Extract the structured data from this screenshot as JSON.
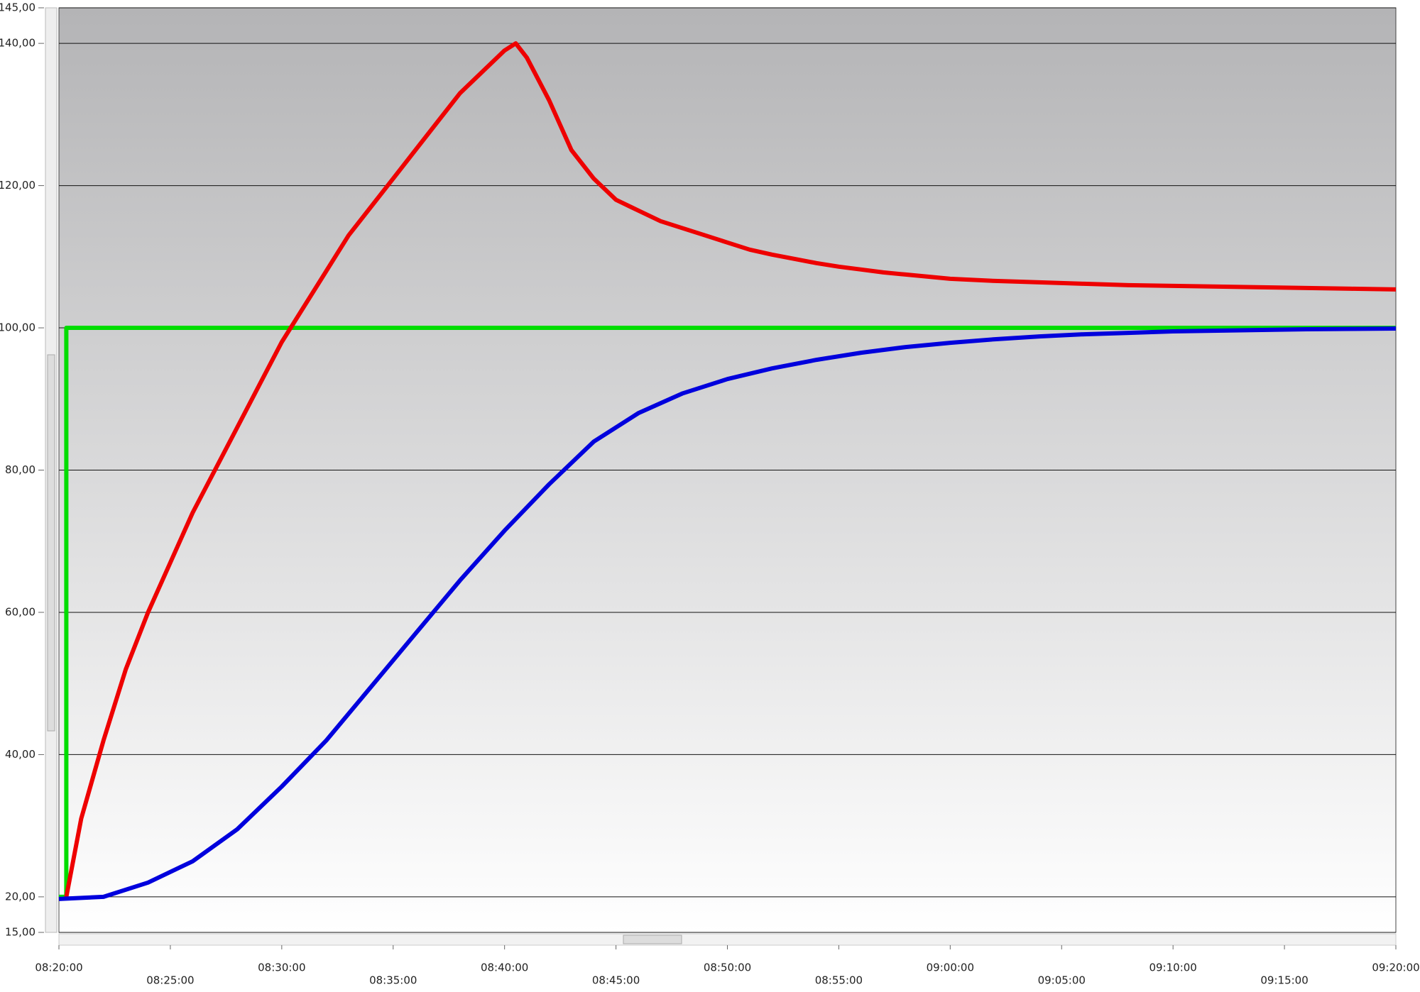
{
  "chart_data": {
    "type": "line",
    "xlim": [
      500,
      560
    ],
    "xticks": [
      {
        "value": 500,
        "label": "08:20:00"
      },
      {
        "value": 505,
        "label": "08:25:00"
      },
      {
        "value": 510,
        "label": "08:30:00"
      },
      {
        "value": 515,
        "label": "08:35:00"
      },
      {
        "value": 520,
        "label": "08:40:00"
      },
      {
        "value": 525,
        "label": "08:45:00"
      },
      {
        "value": 530,
        "label": "08:50:00"
      },
      {
        "value": 535,
        "label": "08:55:00"
      },
      {
        "value": 540,
        "label": "09:00:00"
      },
      {
        "value": 545,
        "label": "09:05:00"
      },
      {
        "value": 550,
        "label": "09:10:00"
      },
      {
        "value": 555,
        "label": "09:15:00"
      },
      {
        "value": 560,
        "label": "09:20:00"
      }
    ],
    "ylim": [
      15,
      145
    ],
    "yticks": [
      {
        "value": 15,
        "label": "15,00"
      },
      {
        "value": 20,
        "label": "20,00"
      },
      {
        "value": 40,
        "label": "40,00"
      },
      {
        "value": 60,
        "label": "60,00"
      },
      {
        "value": 80,
        "label": "80,00"
      },
      {
        "value": 100,
        "label": "100,00"
      },
      {
        "value": 120,
        "label": "120,00"
      },
      {
        "value": 140,
        "label": "140,00"
      },
      {
        "value": 145,
        "label": "145,00"
      }
    ],
    "grid": true,
    "series": [
      {
        "color": "#00dd00",
        "x": [
          500,
          500.33,
          500.33,
          560
        ],
        "values": [
          20,
          20,
          100,
          100
        ]
      },
      {
        "color": "#ee0000",
        "x": [
          500.33,
          501,
          502,
          503,
          504,
          505,
          506,
          507,
          508,
          509,
          510,
          511,
          512,
          513,
          514,
          515,
          516,
          517,
          518,
          519,
          520,
          520.5,
          521,
          522,
          523,
          524,
          525,
          526,
          527,
          528,
          529,
          530,
          531,
          532,
          533,
          534,
          535,
          536,
          537,
          538,
          539,
          540,
          542,
          544,
          546,
          548,
          550,
          552,
          554,
          556,
          558,
          560
        ],
        "values": [
          20,
          31,
          42,
          52,
          60,
          67,
          74,
          80,
          86,
          92,
          98,
          103,
          108,
          113,
          117,
          121,
          125,
          129,
          133,
          136,
          139,
          140,
          138,
          132,
          125,
          121,
          118,
          116.5,
          115,
          114,
          113,
          112,
          111,
          110.3,
          109.7,
          109.1,
          108.6,
          108.2,
          107.8,
          107.5,
          107.2,
          106.9,
          106.6,
          106.4,
          106.2,
          106,
          105.9,
          105.8,
          105.7,
          105.6,
          105.5,
          105.4
        ]
      },
      {
        "color": "#0000dd",
        "x": [
          500,
          502,
          504,
          506,
          508,
          510,
          512,
          514,
          516,
          518,
          520,
          522,
          524,
          526,
          528,
          530,
          532,
          534,
          536,
          538,
          540,
          542,
          544,
          546,
          548,
          550,
          552,
          554,
          556,
          558,
          560
        ],
        "values": [
          19.7,
          20,
          22,
          25,
          29.5,
          35.5,
          42,
          49.5,
          57,
          64.5,
          71.5,
          78,
          84,
          88,
          90.8,
          92.8,
          94.3,
          95.5,
          96.5,
          97.3,
          97.9,
          98.4,
          98.8,
          99.1,
          99.3,
          99.5,
          99.6,
          99.7,
          99.8,
          99.85,
          99.9
        ]
      }
    ]
  }
}
